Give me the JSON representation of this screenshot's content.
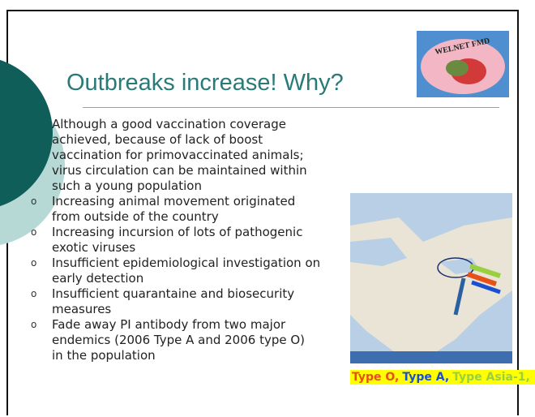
{
  "slide": {
    "title": "Outbreaks increase! Why?",
    "logo_text": "WELNET FMD",
    "bullets": [
      {
        "lines": [
          "Although a good vaccination coverage",
          "achieved, because of lack of boost",
          "vaccination for primovaccinated animals;",
          "virus circulation can be maintained within",
          "such a young population"
        ]
      },
      {
        "lines": [
          "Increasing animal movement originated",
          "from outside of the country"
        ]
      },
      {
        "lines": [
          "Increasing incursion of lots of pathogenic",
          "exotic viruses"
        ]
      },
      {
        "lines": [
          "Insufficient epidemiological investigation on",
          "early detection"
        ]
      },
      {
        "lines": [
          "Insufficient quarantaine and biosecurity",
          "measures"
        ]
      },
      {
        "lines": [
          "Fade away PI antibody from two major",
          "endemics (2006 Type A and 2006 type O)",
          "in the population"
        ]
      }
    ],
    "marker": "o",
    "legend": [
      {
        "label": "Type O,",
        "color": "#e8501a"
      },
      {
        "label": "Type A,",
        "color": "#1c4fd0"
      },
      {
        "label": "Type Asia-1,",
        "color": "#9ad040"
      }
    ]
  }
}
